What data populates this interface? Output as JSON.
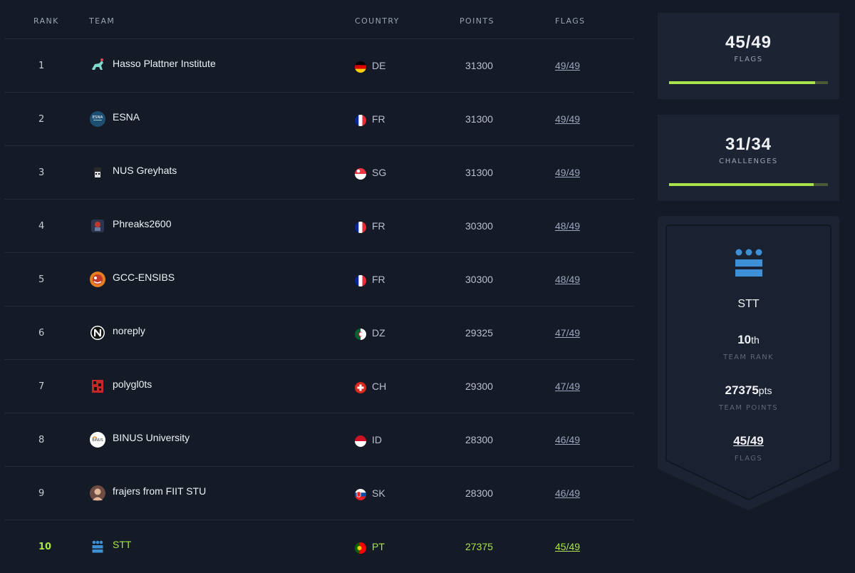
{
  "table": {
    "headers": {
      "rank": "RANK",
      "team": "TEAM",
      "country": "COUNTRY",
      "points": "POINTS",
      "flags": "FLAGS"
    },
    "rows": [
      {
        "rank": "1",
        "team": "Hasso Plattner Institute",
        "country": "DE",
        "points": "31300",
        "flags": "49/49",
        "logo": "hpi-logo",
        "flag": "germany"
      },
      {
        "rank": "2",
        "team": "ESNA",
        "country": "FR",
        "points": "31300",
        "flags": "49/49",
        "logo": "esna-logo",
        "flag": "france"
      },
      {
        "rank": "3",
        "team": "NUS Greyhats",
        "country": "SG",
        "points": "31300",
        "flags": "49/49",
        "logo": "nus-greyhats-logo",
        "flag": "singapore"
      },
      {
        "rank": "4",
        "team": "Phreaks2600",
        "country": "FR",
        "points": "30300",
        "flags": "48/49",
        "logo": "phreaks-logo",
        "flag": "france"
      },
      {
        "rank": "5",
        "team": "GCC-ENSIBS",
        "country": "FR",
        "points": "30300",
        "flags": "48/49",
        "logo": "gcc-logo",
        "flag": "france"
      },
      {
        "rank": "6",
        "team": "noreply",
        "country": "DZ",
        "points": "29325",
        "flags": "47/49",
        "logo": "noreply-logo",
        "flag": "algeria"
      },
      {
        "rank": "7",
        "team": "polygl0ts",
        "country": "CH",
        "points": "29300",
        "flags": "47/49",
        "logo": "polyglots-logo",
        "flag": "switzerland"
      },
      {
        "rank": "8",
        "team": "BINUS University",
        "country": "ID",
        "points": "28300",
        "flags": "46/49",
        "logo": "binus-logo",
        "flag": "indonesia"
      },
      {
        "rank": "9",
        "team": "frajers from FIIT STU",
        "country": "SK",
        "points": "28300",
        "flags": "46/49",
        "logo": "frajers-logo",
        "flag": "slovakia"
      },
      {
        "rank": "10",
        "team": "STT",
        "country": "PT",
        "points": "27375",
        "flags": "45/49",
        "logo": "stt-logo",
        "flag": "portugal",
        "highlighted": true
      }
    ]
  },
  "stats": {
    "flags": {
      "value": "45/49",
      "label": "FLAGS",
      "progress": 0.918
    },
    "challenges": {
      "value": "31/34",
      "label": "CHALLENGES",
      "progress": 0.912
    }
  },
  "team_card": {
    "name": "STT",
    "rank_num": "10",
    "rank_suffix": "th",
    "rank_label": "TEAM RANK",
    "points_num": "27375",
    "points_suffix": "pts",
    "points_label": "TEAM POINTS",
    "flags": "45/49",
    "flags_label": "FLAGS",
    "icon": "stt-logo"
  },
  "colors": {
    "accent": "#a9e34b",
    "background": "#141a26",
    "panel": "#1c2433",
    "logo_blue": "#3d8fd6"
  }
}
